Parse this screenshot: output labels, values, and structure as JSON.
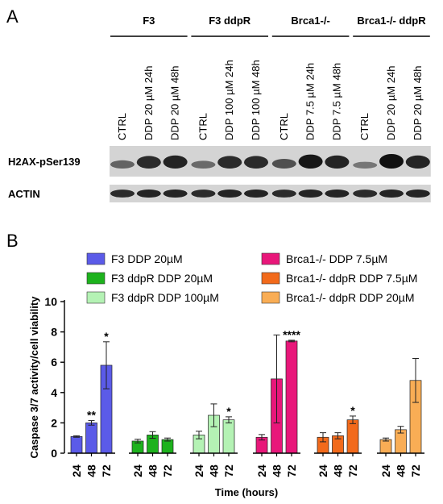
{
  "panel_a": {
    "label": "A",
    "groups": [
      {
        "name": "F3",
        "lanes": [
          "CTRL",
          "DDP 20 µM 24h",
          "DDP 20 µM 48h"
        ]
      },
      {
        "name": "F3 ddpR",
        "lanes": [
          "CTRL",
          "DDP 100 µM 24h",
          "DDP 100 µM 48h"
        ]
      },
      {
        "name": "Brca1-/-",
        "lanes": [
          "CTRL",
          "DDP 7.5 µM 24h",
          "DDP 7.5 µM 48h"
        ]
      },
      {
        "name": "Brca1-/- ddpR",
        "lanes": [
          "CTRL",
          "DDP 20 µM 24h",
          "DDP 20 µM 48h"
        ]
      }
    ],
    "blots": [
      {
        "label": "H2AX-pSer139",
        "intensity": [
          0.35,
          0.8,
          0.85,
          0.3,
          0.8,
          0.8,
          0.5,
          0.95,
          0.85,
          0.2,
          1.0,
          0.85
        ]
      },
      {
        "label": "ACTIN",
        "intensity": [
          0.8,
          0.85,
          0.85,
          0.8,
          0.85,
          0.85,
          0.8,
          0.85,
          0.85,
          0.8,
          0.85,
          0.85
        ]
      }
    ],
    "colors": {
      "blot_bg": "#d4d4d4",
      "band": "#111111"
    }
  },
  "panel_b": {
    "label": "B",
    "chart_data": {
      "type": "bar",
      "ylabel": "Caspase 3/7 activity/cell viability",
      "xlabel": "Time (hours)",
      "ylim": [
        0,
        10
      ],
      "yticks": [
        0,
        2,
        4,
        6,
        8,
        10
      ],
      "legend_placement": "top",
      "groups": [
        {
          "name": "F3 DDP 20µM",
          "color": "#5b5be8",
          "bars": [
            {
              "x": "24",
              "value": 1.1,
              "err": 0.05,
              "sig": ""
            },
            {
              "x": "48",
              "value": 2.0,
              "err": 0.15,
              "sig": "**"
            },
            {
              "x": "72",
              "value": 5.8,
              "err": 1.55,
              "sig": "*"
            }
          ]
        },
        {
          "name": "F3 ddpR DDP 20µM",
          "color": "#1db21d",
          "bars": [
            {
              "x": "24",
              "value": 0.8,
              "err": 0.12,
              "sig": ""
            },
            {
              "x": "48",
              "value": 1.2,
              "err": 0.22,
              "sig": ""
            },
            {
              "x": "72",
              "value": 0.9,
              "err": 0.1,
              "sig": ""
            }
          ]
        },
        {
          "name": "F3 ddpR DDP 100µM",
          "color": "#b4f2b4",
          "bars": [
            {
              "x": "24",
              "value": 1.2,
              "err": 0.25,
              "sig": ""
            },
            {
              "x": "48",
              "value": 2.5,
              "err": 0.75,
              "sig": ""
            },
            {
              "x": "72",
              "value": 2.2,
              "err": 0.2,
              "sig": "*"
            }
          ]
        },
        {
          "name": "Brca1-/- DDP 7.5µM",
          "color": "#e8177a",
          "bars": [
            {
              "x": "24",
              "value": 1.05,
              "err": 0.18,
              "sig": ""
            },
            {
              "x": "48",
              "value": 4.9,
              "err": 2.9,
              "sig": ""
            },
            {
              "x": "72",
              "value": 7.4,
              "err": 0.05,
              "sig": "****"
            }
          ]
        },
        {
          "name": "Brca1-/- ddpR DDP 7.5µM",
          "color": "#f26a1b",
          "bars": [
            {
              "x": "24",
              "value": 1.05,
              "err": 0.3,
              "sig": ""
            },
            {
              "x": "48",
              "value": 1.15,
              "err": 0.2,
              "sig": ""
            },
            {
              "x": "72",
              "value": 2.2,
              "err": 0.25,
              "sig": "*"
            }
          ]
        },
        {
          "name": "Brca1-/- ddpR DDP 20µM",
          "color": "#f9ad55",
          "bars": [
            {
              "x": "24",
              "value": 0.9,
              "err": 0.1,
              "sig": ""
            },
            {
              "x": "48",
              "value": 1.55,
              "err": 0.22,
              "sig": ""
            },
            {
              "x": "72",
              "value": 4.8,
              "err": 1.45,
              "sig": ""
            }
          ]
        }
      ]
    }
  }
}
